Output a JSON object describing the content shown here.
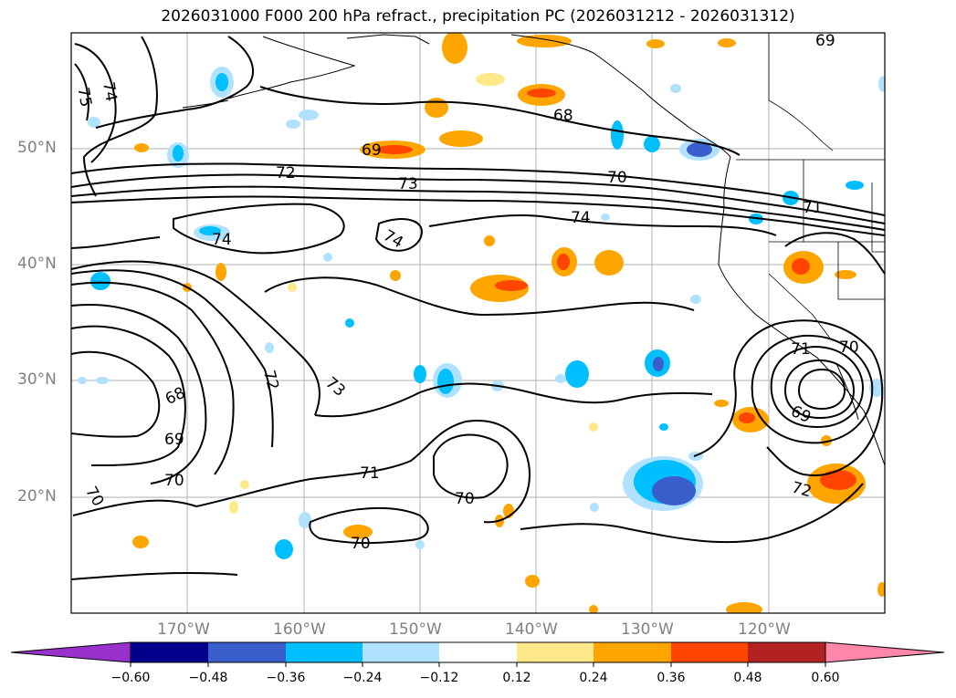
{
  "title": "2026031000 F000 200 hPa refract., precipitation PC (2026031212 - 2026031312)",
  "map": {
    "lat_labels": [
      "50°N",
      "40°N",
      "30°N",
      "20°N"
    ],
    "lon_labels": [
      "170°W",
      "160°W",
      "150°W",
      "140°W",
      "130°W",
      "120°W"
    ],
    "contour_labels": [
      "69",
      "75",
      "74",
      "69",
      "72",
      "73",
      "70",
      "68",
      "74",
      "74",
      "71",
      "74",
      "72",
      "73",
      "68",
      "69",
      "70",
      "70",
      "71",
      "70",
      "70",
      "70",
      "71",
      "69",
      "72"
    ]
  },
  "colorbar": {
    "ticks": [
      "−0.60",
      "−0.48",
      "−0.36",
      "−0.24",
      "−0.12",
      "0.12",
      "0.24",
      "0.36",
      "0.48",
      "0.60"
    ],
    "colors": [
      "#9932cc",
      "#00008b",
      "#3a5fcd",
      "#00bfff",
      "#b0e2ff",
      "#ffffff",
      "#ffe88a",
      "#ffa500",
      "#ff4500",
      "#b22222",
      "#ff88aa"
    ]
  }
}
